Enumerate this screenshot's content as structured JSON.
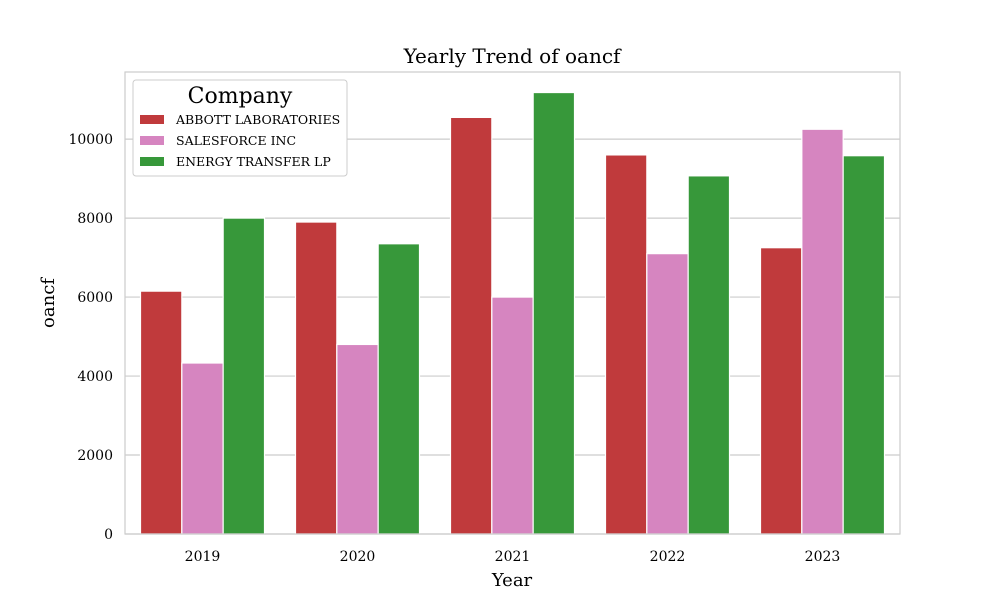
{
  "chart_data": {
    "type": "bar",
    "title": "Yearly Trend of oancf",
    "xlabel": "Year",
    "ylabel": "oancf",
    "categories": [
      "2019",
      "2020",
      "2021",
      "2022",
      "2023"
    ],
    "ylim": [
      0,
      11700
    ],
    "yticks": [
      0,
      2000,
      4000,
      6000,
      8000,
      10000
    ],
    "grid": "horizontal",
    "legend": {
      "title": "Company",
      "position": "top-left"
    },
    "series": [
      {
        "name": "ABBOTT LABORATORIES",
        "color": "#c03a3c",
        "values": [
          6150,
          7900,
          10550,
          9600,
          7250
        ]
      },
      {
        "name": "SALESFORCE INC",
        "color": "#d685c0",
        "values": [
          4330,
          4800,
          6000,
          7100,
          10250
        ]
      },
      {
        "name": "ENERGY TRANSFER LP",
        "color": "#37983a",
        "values": [
          8000,
          7350,
          11180,
          9070,
          9580
        ]
      }
    ]
  }
}
